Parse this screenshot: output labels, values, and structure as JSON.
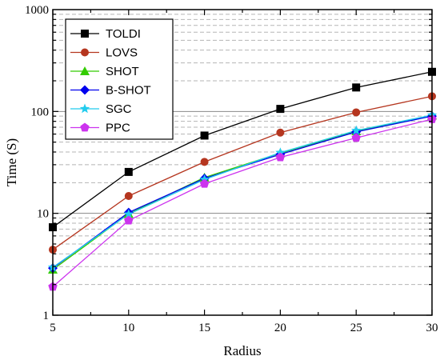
{
  "chart_data": {
    "type": "line",
    "xlabel": "Radius",
    "ylabel": "Time (S)",
    "yscale": "log",
    "xlim": [
      5,
      30
    ],
    "ylim": [
      1,
      1000
    ],
    "x_ticks": [
      "5",
      "10",
      "15",
      "20",
      "25",
      "30"
    ],
    "y_ticks": [
      "1",
      "10",
      "100",
      "1000"
    ],
    "x": [
      5,
      10,
      15,
      20,
      25,
      30
    ],
    "grid": "horizontal (major solid, minor dashed)",
    "legend_position": "top-left",
    "series": [
      {
        "name": "TOLDI",
        "color": "#000000",
        "marker": "square",
        "values": [
          7.3,
          25.5,
          58,
          106,
          172,
          245
        ]
      },
      {
        "name": "LOVS",
        "color": "#b5361f",
        "marker": "circle",
        "values": [
          4.4,
          14.8,
          32,
          62,
          98,
          141
        ]
      },
      {
        "name": "SHOT",
        "color": "#33cc00",
        "marker": "triangle-up",
        "values": [
          2.8,
          9.9,
          22.5,
          39,
          64,
          91
        ]
      },
      {
        "name": "B-SHOT",
        "color": "#0000ee",
        "marker": "diamond",
        "values": [
          2.9,
          10.2,
          22,
          38,
          63,
          90
        ]
      },
      {
        "name": "SGC",
        "color": "#22ccee",
        "marker": "star",
        "values": [
          2.95,
          9.8,
          21.5,
          39.5,
          65,
          92
        ]
      },
      {
        "name": "PPC",
        "color": "#cc33ee",
        "marker": "pentagon",
        "values": [
          1.9,
          8.5,
          19.5,
          35.5,
          55,
          84
        ]
      }
    ]
  }
}
